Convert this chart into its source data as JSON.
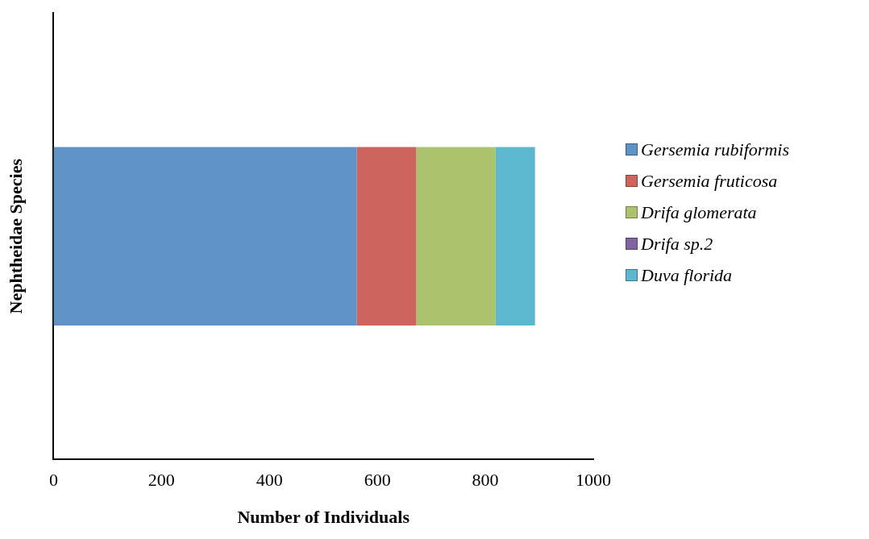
{
  "chart_data": {
    "type": "bar",
    "orientation": "horizontal",
    "stacked": true,
    "xlabel": "Number of Individuals",
    "ylabel": "Nephtheidae Species",
    "categories": [
      null
    ],
    "series": [
      {
        "name": "Gersemia rubiformis",
        "color": "#5f93c8",
        "values": [
          562
        ]
      },
      {
        "name": "Gersemia fruticosa",
        "color": "#cc655e",
        "values": [
          110
        ]
      },
      {
        "name": "Drifa glomerata",
        "color": "#abc36c",
        "values": [
          147
        ]
      },
      {
        "name": "Drifa sp.2",
        "color": "#8064a2",
        "values": [
          0
        ]
      },
      {
        "name": "Duva florida",
        "color": "#5bb8cf",
        "values": [
          73
        ]
      }
    ],
    "xlim": [
      0,
      1000
    ],
    "xticks": [
      0,
      200,
      400,
      600,
      800,
      1000
    ],
    "grid": false,
    "legend": "right"
  }
}
